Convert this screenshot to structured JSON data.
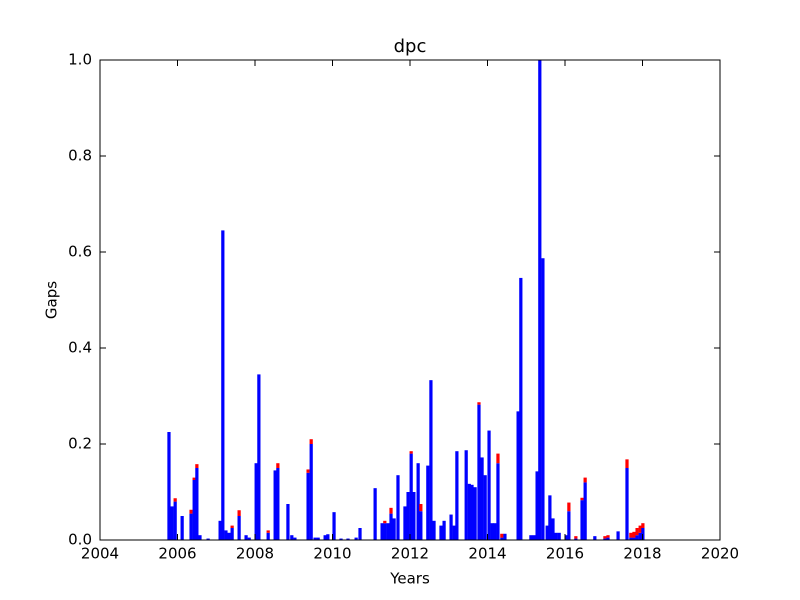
{
  "chart_data": {
    "type": "bar",
    "stacked": true,
    "title": "dpc",
    "x_label": "Years",
    "y_label": "Gaps",
    "x": [
      2005.78,
      2005.86,
      2005.94,
      2006.12,
      2006.35,
      2006.43,
      2006.5,
      2006.58,
      2006.79,
      2007.1,
      2007.17,
      2007.25,
      2007.33,
      2007.41,
      2007.59,
      2007.77,
      2007.85,
      2008.03,
      2008.1,
      2008.34,
      2008.52,
      2008.59,
      2008.85,
      2008.95,
      2009.03,
      2009.37,
      2009.45,
      2009.55,
      2009.63,
      2009.81,
      2009.88,
      2010.04,
      2010.22,
      2010.4,
      2010.61,
      2010.71,
      2011.1,
      2011.28,
      2011.35,
      2011.43,
      2011.51,
      2011.59,
      2011.69,
      2011.87,
      2011.95,
      2012.03,
      2012.1,
      2012.21,
      2012.28,
      2012.46,
      2012.54,
      2012.62,
      2012.8,
      2012.88,
      2013.06,
      2013.14,
      2013.21,
      2013.45,
      2013.53,
      2013.6,
      2013.68,
      2013.78,
      2013.86,
      2013.94,
      2014.04,
      2014.12,
      2014.19,
      2014.27,
      2014.37,
      2014.45,
      2014.79,
      2014.86,
      2015.12,
      2015.2,
      2015.28,
      2015.35,
      2015.43,
      2015.54,
      2015.61,
      2015.69,
      2015.77,
      2015.85,
      2016.03,
      2016.1,
      2016.28,
      2016.44,
      2016.52,
      2016.77,
      2017.03,
      2017.11,
      2017.37,
      2017.6,
      2017.7,
      2017.78,
      2017.86,
      2017.94,
      2018.01
    ],
    "series": [
      {
        "color": "#0000ff",
        "values": [
          0.225,
          0.07,
          0.08,
          0.05,
          0.055,
          0.125,
          0.15,
          0.01,
          0.003,
          0.04,
          0.645,
          0.02,
          0.015,
          0.025,
          0.05,
          0.01,
          0.005,
          0.16,
          0.345,
          0.015,
          0.145,
          0.15,
          0.075,
          0.01,
          0.005,
          0.14,
          0.2,
          0.005,
          0.005,
          0.01,
          0.012,
          0.058,
          0.003,
          0.003,
          0.005,
          0.025,
          0.108,
          0.035,
          0.035,
          0.035,
          0.055,
          0.045,
          0.135,
          0.07,
          0.1,
          0.18,
          0.1,
          0.16,
          0.06,
          0.155,
          0.333,
          0.04,
          0.03,
          0.04,
          0.053,
          0.03,
          0.185,
          0.187,
          0.117,
          0.115,
          0.11,
          0.282,
          0.172,
          0.135,
          0.228,
          0.035,
          0.035,
          0.16,
          0.005,
          0.013,
          0.268,
          0.546,
          0.01,
          0.01,
          0.143,
          1.0,
          0.587,
          0.03,
          0.093,
          0.045,
          0.015,
          0.015,
          0.01,
          0.06,
          0.003,
          0.083,
          0.12,
          0.008,
          0.003,
          0.005,
          0.018,
          0.15,
          0.005,
          0.005,
          0.01,
          0.015,
          0.025
        ]
      },
      {
        "color": "#ff0000",
        "values": [
          0,
          0,
          0.007,
          0,
          0.008,
          0.005,
          0.008,
          0,
          0,
          0,
          0,
          0,
          0,
          0.005,
          0.012,
          0,
          0,
          0,
          0,
          0.005,
          0,
          0.01,
          0,
          0,
          0,
          0.007,
          0.01,
          0,
          0,
          0,
          0,
          0,
          0,
          0,
          0,
          0,
          0,
          0,
          0.005,
          0,
          0.012,
          0,
          0,
          0,
          0,
          0.005,
          0,
          0,
          0.015,
          0,
          0,
          0,
          0,
          0,
          0,
          0,
          0,
          0,
          0,
          0,
          0,
          0.005,
          0,
          0,
          0,
          0,
          0,
          0.02,
          0.008,
          0,
          0,
          0,
          0,
          0,
          0,
          0,
          0,
          0,
          0,
          0,
          0,
          0,
          0,
          0.018,
          0.005,
          0.005,
          0.01,
          0,
          0.005,
          0.005,
          0,
          0.018,
          0.01,
          0.012,
          0.015,
          0.015,
          0.01
        ]
      }
    ],
    "xlim": [
      2004,
      2020
    ],
    "xticks": [
      2004,
      2006,
      2008,
      2010,
      2012,
      2014,
      2016,
      2018,
      2020
    ],
    "ylim": [
      0,
      1
    ],
    "yticks": [
      {
        "value": 0,
        "label": "0.0"
      },
      0.2,
      0.4,
      0.6,
      0.8,
      {
        "value": 1,
        "label": "1.0"
      }
    ]
  }
}
